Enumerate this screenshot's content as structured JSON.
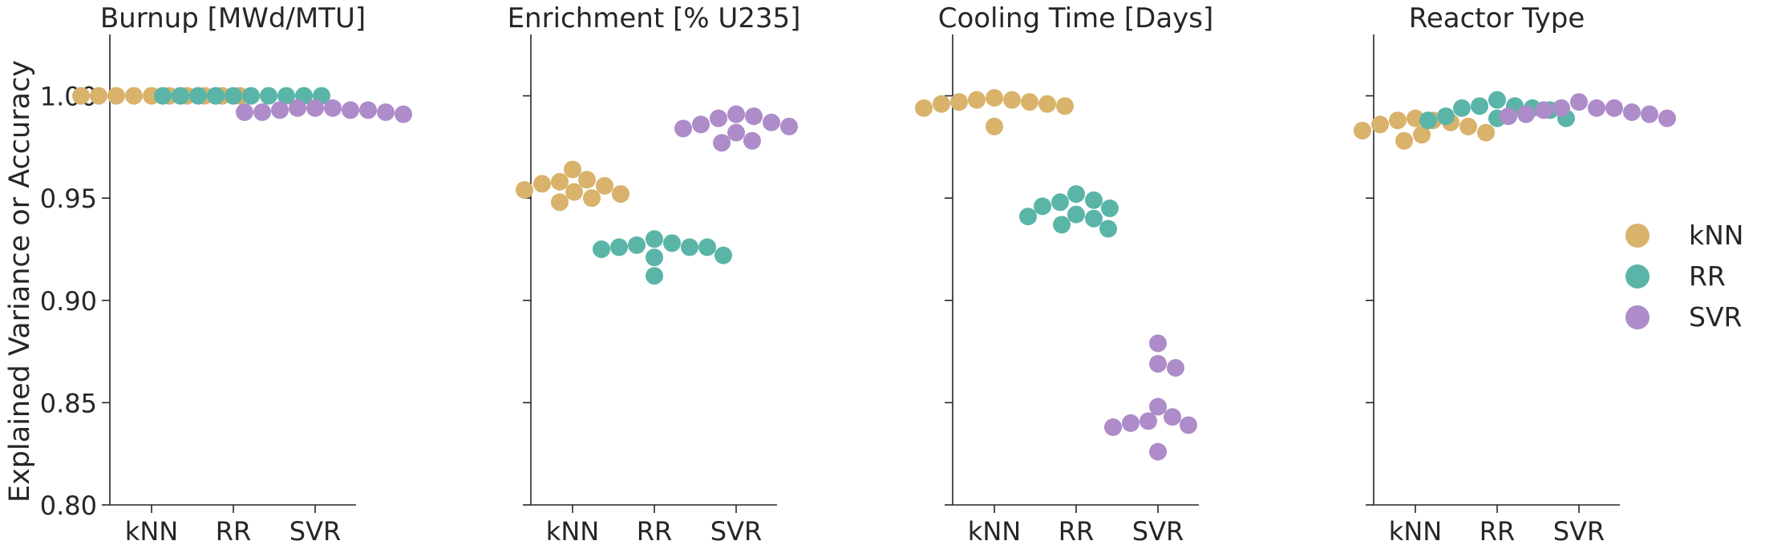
{
  "chart_data": {
    "type": "scatter",
    "subtype": "swarm",
    "ylabel": "Explained Variance or Accuracy",
    "ylim": [
      0.8,
      1.03
    ],
    "yticks": [
      0.8,
      0.85,
      0.9,
      0.95,
      1.0
    ],
    "ytick_labels": [
      "0.80",
      "0.85",
      "0.90",
      "0.95",
      "1.00"
    ],
    "categories": [
      "kNN",
      "RR",
      "SVR"
    ],
    "grid": false,
    "legend_position": "right",
    "series_colors": {
      "kNN": "#d9b26b",
      "RR": "#5ab5a8",
      "SVR": "#ad8cc9"
    },
    "legend": [
      {
        "name": "kNN",
        "color": "#d9b26b"
      },
      {
        "name": "RR",
        "color": "#5ab5a8"
      },
      {
        "name": "SVR",
        "color": "#ad8cc9"
      }
    ],
    "panels": [
      {
        "title": "Burnup [MWd/MTU]",
        "series": [
          {
            "name": "kNN",
            "values": [
              1.0,
              1.0,
              1.0,
              1.0,
              1.0,
              1.0,
              1.0,
              1.0,
              1.0,
              1.0
            ]
          },
          {
            "name": "RR",
            "values": [
              1.0,
              1.0,
              1.0,
              1.0,
              1.0,
              1.0,
              1.0,
              1.0,
              1.0,
              1.0
            ]
          },
          {
            "name": "SVR",
            "values": [
              0.994,
              0.993,
              0.992,
              0.994,
              0.993,
              0.992,
              0.993,
              0.994,
              0.992,
              0.991
            ]
          }
        ]
      },
      {
        "title": "Enrichment [% U235]",
        "series": [
          {
            "name": "kNN",
            "values": [
              0.959,
              0.956,
              0.954,
              0.964,
              0.957,
              0.952,
              0.958,
              0.95,
              0.953,
              0.948
            ]
          },
          {
            "name": "RR",
            "values": [
              0.927,
              0.926,
              0.928,
              0.93,
              0.926,
              0.925,
              0.922,
              0.921,
              0.926,
              0.912
            ]
          },
          {
            "name": "SVR",
            "values": [
              0.989,
              0.987,
              0.99,
              0.991,
              0.986,
              0.984,
              0.985,
              0.982,
              0.977,
              0.978
            ]
          }
        ]
      },
      {
        "title": "Cooling Time [Days]",
        "series": [
          {
            "name": "kNN",
            "values": [
              0.999,
              0.997,
              0.996,
              0.995,
              0.996,
              0.997,
              0.998,
              0.994,
              0.998,
              0.985
            ]
          },
          {
            "name": "RR",
            "values": [
              0.952,
              0.949,
              0.946,
              0.948,
              0.945,
              0.942,
              0.941,
              0.94,
              0.937,
              0.935
            ]
          },
          {
            "name": "SVR",
            "values": [
              0.879,
              0.869,
              0.867,
              0.848,
              0.843,
              0.841,
              0.84,
              0.839,
              0.838,
              0.826
            ]
          }
        ]
      },
      {
        "title": "Reactor Type",
        "series": [
          {
            "name": "kNN",
            "values": [
              0.988,
              0.986,
              0.989,
              0.987,
              0.985,
              0.983,
              0.981,
              0.982,
              0.978,
              0.988
            ]
          },
          {
            "name": "RR",
            "values": [
              0.998,
              0.995,
              0.995,
              0.994,
              0.993,
              0.99,
              0.989,
              0.989,
              0.988,
              0.994
            ]
          },
          {
            "name": "SVR",
            "values": [
              0.997,
              0.994,
              0.994,
              0.993,
              0.992,
              0.991,
              0.991,
              0.99,
              0.994,
              0.989
            ]
          }
        ]
      }
    ]
  }
}
